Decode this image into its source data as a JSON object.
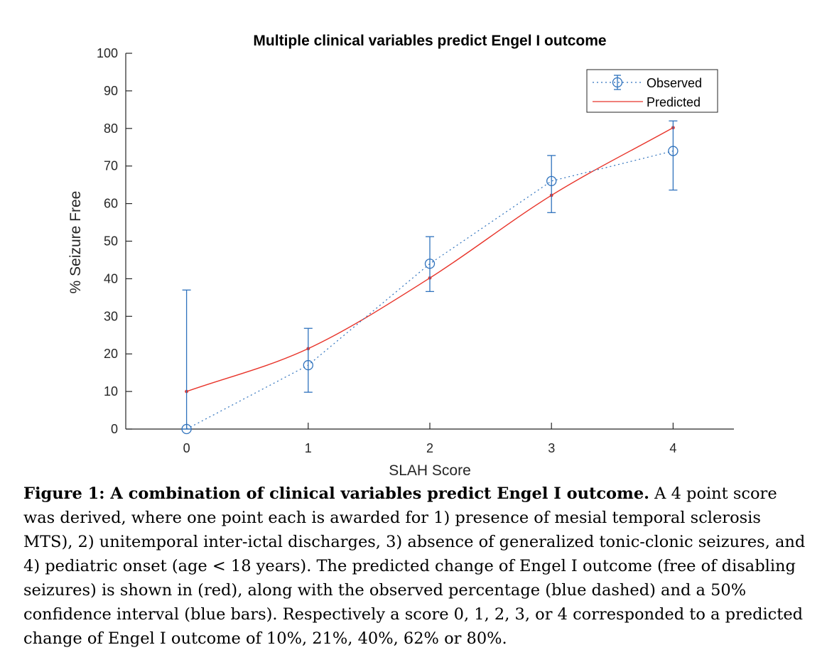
{
  "chart_data": {
    "type": "line",
    "title": "Multiple clinical variables predict Engel I outcome",
    "xlabel": "SLAH Score",
    "ylabel": "% Seizure Free",
    "xlim": [
      -0.5,
      4.5
    ],
    "ylim": [
      0,
      100
    ],
    "x": [
      0,
      1,
      2,
      3,
      4
    ],
    "xticks": [
      "0",
      "1",
      "2",
      "3",
      "4"
    ],
    "yticks": [
      "0",
      "10",
      "20",
      "30",
      "40",
      "50",
      "60",
      "70",
      "80",
      "90",
      "100"
    ],
    "grid": false,
    "legend_location": "top-right",
    "series": [
      {
        "name": "Observed",
        "style": "dotted line with open circle markers and error bars",
        "color": "#2f72bd",
        "values": [
          0,
          17,
          44,
          66,
          74
        ],
        "error_lower": [
          0,
          9.8,
          36.6,
          57.6,
          63.6
        ],
        "error_upper": [
          37,
          26.8,
          51.2,
          72.8,
          82
        ]
      },
      {
        "name": "Predicted",
        "style": "solid line with small dot markers",
        "color": "#e8342a",
        "values": [
          10,
          21.4,
          40.2,
          62.2,
          80.2
        ]
      }
    ]
  },
  "caption": {
    "heading": "Figure 1: A combination of clinical variables predict Engel I outcome.",
    "body": "  A 4 point score was derived, where one point each is awarded for 1) presence of mesial temporal sclerosis MTS), 2) unitemporal inter-ictal discharges, 3) absence of generalized tonic-clonic seizures, and 4) pediatric onset (age < 18 years).  The predicted change of Engel I outcome (free of disabling seizures) is shown in (red), along with the observed percentage (blue dashed) and a 50% confidence interval (blue bars).  Respectively a score 0, 1, 2, 3, or 4 corresponded to a predicted change of Engel I outcome of 10%, 21%, 40%, 62% or 80%."
  }
}
